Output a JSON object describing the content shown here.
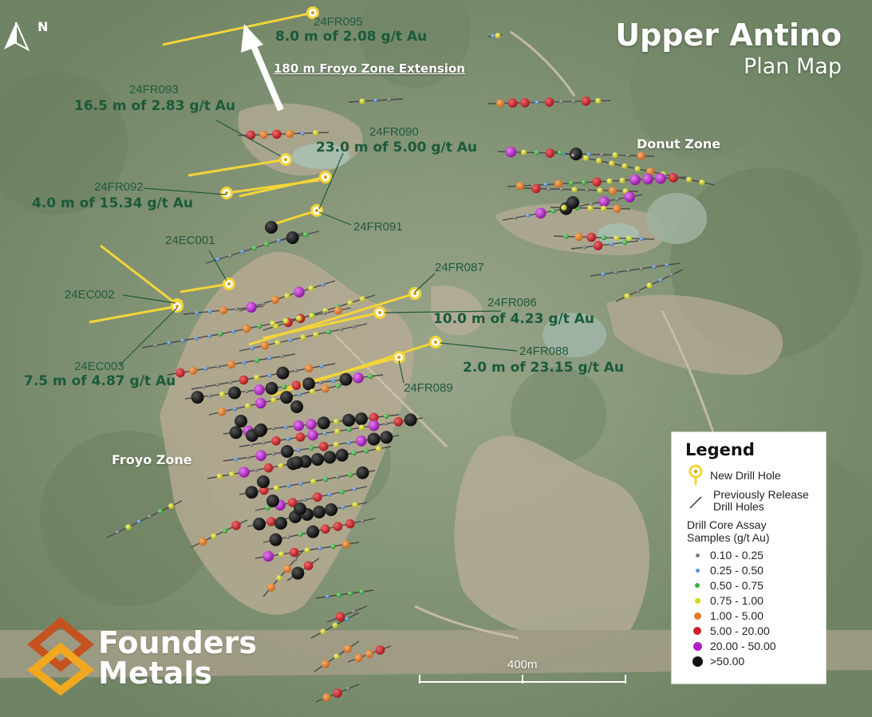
{
  "title": {
    "main": "Upper Antino",
    "sub": "Plan Map"
  },
  "north_arrow": {
    "letter": "N",
    "icon": "north-arrow-icon"
  },
  "extension_label": "180 m Froyo Zone Extension",
  "zones": [
    {
      "id": "donut",
      "label": "Donut Zone"
    },
    {
      "id": "froyo",
      "label": "Froyo Zone"
    }
  ],
  "new_holes": [
    {
      "id": "24FR095",
      "intercept": "8.0 m of 2.08 g/t Au"
    },
    {
      "id": "24FR093",
      "intercept": "16.5 m of 2.83 g/t Au"
    },
    {
      "id": "24FR090",
      "intercept": "23.0 m of 5.00 g/t Au"
    },
    {
      "id": "24FR092",
      "intercept": "4.0 m of 15.34 g/t Au"
    },
    {
      "id": "24FR091",
      "intercept": ""
    },
    {
      "id": "24EC001",
      "intercept": ""
    },
    {
      "id": "24FR087",
      "intercept": ""
    },
    {
      "id": "24EC002",
      "intercept": ""
    },
    {
      "id": "24FR086",
      "intercept": "10.0 m of 4.23 g/t Au"
    },
    {
      "id": "24FR088",
      "intercept": "2.0 m of 23.15 g/t Au"
    },
    {
      "id": "24EC003",
      "intercept": "7.5 m of 4.87 g/t Au"
    },
    {
      "id": "24FR089",
      "intercept": ""
    }
  ],
  "legend": {
    "title": "Legend",
    "new_hole": "New Drill Hole",
    "prev_holes_line1": "Previously Release",
    "prev_holes_line2": "Drill Holes",
    "assay_line1": "Drill Core Assay",
    "assay_line2": "Samples (g/t Au)",
    "grades": [
      {
        "range": "0.10 - 0.25",
        "color": "#7d7d7d"
      },
      {
        "range": "0.25 - 0.50",
        "color": "#5b8fd0"
      },
      {
        "range": "0.50 - 0.75",
        "color": "#3fae3f"
      },
      {
        "range": "0.75 - 1.00",
        "color": "#d6d624"
      },
      {
        "range": "1.00 - 5.00",
        "color": "#e07b2a"
      },
      {
        "range": "5.00 - 20.00",
        "color": "#d11f2a"
      },
      {
        "range": "20.00 - 50.00",
        "color": "#b020c8"
      },
      {
        "range": ">50.00",
        "color": "#111111"
      }
    ]
  },
  "scale_bar": {
    "label": "400m"
  },
  "logo": {
    "line1": "Founders",
    "line2": "Metals",
    "colors": [
      "#c4531f",
      "#f2a81e"
    ]
  },
  "colors": {
    "new_hole_trace": "#f3d43a",
    "label_green": "#1a5a3a"
  }
}
